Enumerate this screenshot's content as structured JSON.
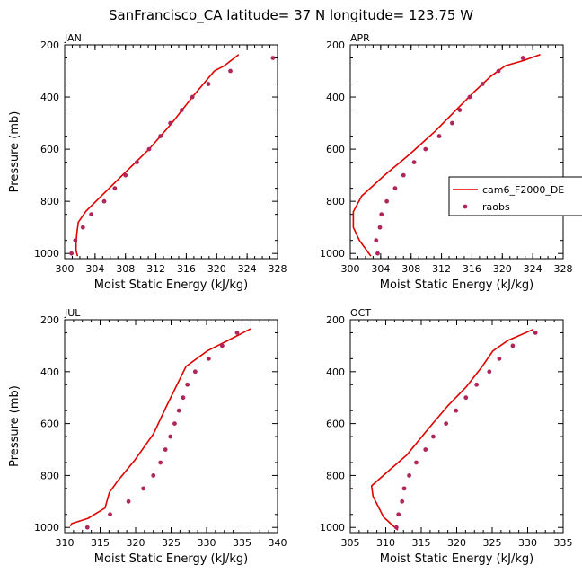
{
  "figure": {
    "title": "SanFrancisco_CA  latitude= 37 N longitude= 123.75 W",
    "model_color": "#e00000",
    "obs_color": "#b0265a"
  },
  "legend": {
    "entries": [
      {
        "label": "cam6_F2000_DE",
        "kind": "line",
        "color": "#e00000"
      },
      {
        "label": "raobs",
        "kind": "marker",
        "color": "#b0265a"
      }
    ]
  },
  "chart_data": [
    {
      "type": "line",
      "panel_label": "JAN",
      "xlabel": "Moist Static Energy (kJ/kg)",
      "ylabel": "Pressure (mb)",
      "xlim": [
        300,
        328
      ],
      "xticks": [
        300,
        304,
        308,
        312,
        316,
        320,
        324,
        328
      ],
      "ylim": [
        200,
        1020
      ],
      "yticks": [
        200,
        400,
        600,
        800,
        1000
      ],
      "y_reversed": true,
      "series": [
        {
          "name": "cam6_F2000_DE",
          "style": "line",
          "points": [
            [
              301.7,
              1010
            ],
            [
              301.5,
              990
            ],
            [
              301.5,
              960
            ],
            [
              301.6,
              925
            ],
            [
              301.8,
              880
            ],
            [
              302.8,
              838
            ],
            [
              307.6,
              700
            ],
            [
              311.1,
              600
            ],
            [
              314.1,
              500
            ],
            [
              316.8,
              400
            ],
            [
              319.7,
              300
            ],
            [
              321.0,
              280
            ],
            [
              322.9,
              237
            ]
          ]
        },
        {
          "name": "raobs",
          "style": "marker",
          "points": [
            [
              300.9,
              1000
            ],
            [
              301.4,
              950
            ],
            [
              302.4,
              900
            ],
            [
              303.5,
              850
            ],
            [
              305.2,
              800
            ],
            [
              306.6,
              750
            ],
            [
              308.0,
              700
            ],
            [
              309.5,
              650
            ],
            [
              311.1,
              600
            ],
            [
              312.6,
              550
            ],
            [
              313.9,
              500
            ],
            [
              315.4,
              450
            ],
            [
              316.8,
              400
            ],
            [
              318.9,
              350
            ],
            [
              321.8,
              300
            ],
            [
              327.4,
              250
            ]
          ]
        }
      ]
    },
    {
      "type": "line",
      "panel_label": "APR",
      "xlabel": "Moist Static Energy (kJ/kg)",
      "ylabel": "",
      "xlim": [
        300,
        328
      ],
      "xticks": [
        300,
        304,
        308,
        312,
        316,
        320,
        324,
        328
      ],
      "ylim": [
        200,
        1020
      ],
      "yticks": [
        200,
        400,
        600,
        800,
        1000
      ],
      "y_reversed": true,
      "series": [
        {
          "name": "cam6_F2000_DE",
          "style": "line",
          "points": [
            [
              302.7,
              1010
            ],
            [
              301.2,
              950
            ],
            [
              300.4,
              900
            ],
            [
              300.4,
              840
            ],
            [
              301.5,
              780
            ],
            [
              304.5,
              700
            ],
            [
              307.8,
              620
            ],
            [
              311.2,
              530
            ],
            [
              313.9,
              450
            ],
            [
              316.3,
              380
            ],
            [
              318.5,
              320
            ],
            [
              320.4,
              280
            ],
            [
              322.8,
              260
            ],
            [
              325.0,
              237
            ]
          ]
        },
        {
          "name": "raobs",
          "style": "marker",
          "points": [
            [
              303.6,
              1000
            ],
            [
              303.4,
              950
            ],
            [
              303.9,
              900
            ],
            [
              304.1,
              850
            ],
            [
              304.8,
              800
            ],
            [
              305.9,
              750
            ],
            [
              307.0,
              700
            ],
            [
              308.4,
              650
            ],
            [
              309.9,
              600
            ],
            [
              311.7,
              550
            ],
            [
              313.4,
              500
            ],
            [
              314.4,
              450
            ],
            [
              315.7,
              400
            ],
            [
              317.4,
              350
            ],
            [
              319.5,
              300
            ],
            [
              322.7,
              250
            ]
          ]
        }
      ]
    },
    {
      "type": "line",
      "panel_label": "JUL",
      "xlabel": "Moist Static Energy (kJ/kg)",
      "ylabel": "Pressure (mb)",
      "xlim": [
        310,
        340
      ],
      "xticks": [
        310,
        315,
        320,
        325,
        330,
        335,
        340
      ],
      "ylim": [
        200,
        1020
      ],
      "yticks": [
        200,
        400,
        600,
        800,
        1000
      ],
      "y_reversed": true,
      "series": [
        {
          "name": "cam6_F2000_DE",
          "style": "line",
          "points": [
            [
              310.8,
              995
            ],
            [
              311.0,
              985
            ],
            [
              313.3,
              965
            ],
            [
              315.7,
              925
            ],
            [
              316.3,
              865
            ],
            [
              317.5,
              820
            ],
            [
              319.9,
              740
            ],
            [
              322.5,
              640
            ],
            [
              324.4,
              530
            ],
            [
              327.1,
              380
            ],
            [
              330.1,
              320
            ],
            [
              333.0,
              280
            ],
            [
              336.2,
              235
            ]
          ]
        },
        {
          "name": "raobs",
          "style": "marker",
          "points": [
            [
              313.2,
              1000
            ],
            [
              316.4,
              950
            ],
            [
              319.0,
              900
            ],
            [
              321.1,
              850
            ],
            [
              322.5,
              800
            ],
            [
              323.5,
              750
            ],
            [
              324.2,
              700
            ],
            [
              324.9,
              650
            ],
            [
              325.5,
              600
            ],
            [
              326.1,
              550
            ],
            [
              326.7,
              500
            ],
            [
              327.3,
              450
            ],
            [
              328.4,
              400
            ],
            [
              330.3,
              350
            ],
            [
              332.2,
              300
            ],
            [
              334.3,
              250
            ]
          ]
        }
      ]
    },
    {
      "type": "line",
      "panel_label": "OCT",
      "xlabel": "Moist Static Energy (kJ/kg)",
      "ylabel": "",
      "xlim": [
        305,
        335
      ],
      "xticks": [
        305,
        310,
        315,
        320,
        325,
        330,
        335
      ],
      "ylim": [
        200,
        1020
      ],
      "yticks": [
        200,
        400,
        600,
        800,
        1000
      ],
      "y_reversed": true,
      "series": [
        {
          "name": "cam6_F2000_DE",
          "style": "line",
          "points": [
            [
              311.7,
              1010
            ],
            [
              309.7,
              960
            ],
            [
              308.2,
              880
            ],
            [
              308.0,
              840
            ],
            [
              310.5,
              780
            ],
            [
              313.0,
              720
            ],
            [
              316.0,
              620
            ],
            [
              318.8,
              530
            ],
            [
              321.3,
              460
            ],
            [
              323.6,
              380
            ],
            [
              325.1,
              320
            ],
            [
              327.2,
              280
            ],
            [
              330.8,
              237
            ]
          ]
        },
        {
          "name": "raobs",
          "style": "marker",
          "points": [
            [
              311.5,
              1000
            ],
            [
              311.8,
              950
            ],
            [
              312.3,
              900
            ],
            [
              312.6,
              850
            ],
            [
              313.3,
              800
            ],
            [
              314.3,
              750
            ],
            [
              315.6,
              700
            ],
            [
              316.7,
              650
            ],
            [
              318.5,
              600
            ],
            [
              319.9,
              550
            ],
            [
              321.3,
              500
            ],
            [
              322.8,
              450
            ],
            [
              324.6,
              400
            ],
            [
              326.0,
              350
            ],
            [
              327.9,
              300
            ],
            [
              331.1,
              250
            ]
          ]
        }
      ]
    }
  ]
}
